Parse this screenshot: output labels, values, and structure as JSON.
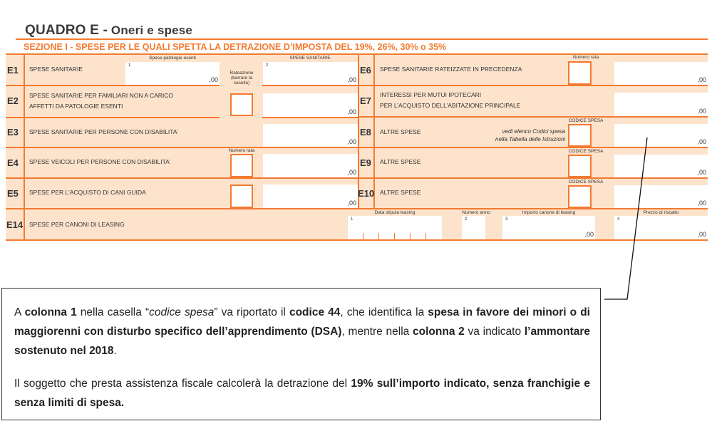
{
  "header": {
    "title_main": "QUADRO E -",
    "title_sub": " Oneri e spese",
    "section": "SEZIONE I  -  SPESE PER LE QUALI SPETTA LA DETRAZIONE D’IMPOSTA DEL 19%, 26%, 30% o 35%"
  },
  "colors": {
    "orange": "#f47a30",
    "peach": "#fde3cc"
  },
  "left_rows": [
    {
      "code": "E1",
      "label": "SPESE SANITARIE"
    },
    {
      "code": "E2",
      "label": "SPESE SANITARIE PER FAMILIARI NON A CARICO",
      "label2": "AFFETTI DA PATOLOGIE ESENTI"
    },
    {
      "code": "E3",
      "label": "SPESE SANITARIE PER PERSONE CON DISABILITA’"
    },
    {
      "code": "E4",
      "label": "SPESE VEICOLI PER PERSONE CON DISABILITA’"
    },
    {
      "code": "E5",
      "label": "SPESE PER L’ACQUISTO DI CANI GUIDA"
    }
  ],
  "right_rows": [
    {
      "code": "E6",
      "label": "SPESE SANITARIE RATEIZZATE IN PRECEDENZA",
      "box_label": "Numero rata"
    },
    {
      "code": "E7",
      "label": "INTERESSI PER MUTUI IPOTECARI",
      "label2": "PER L’ACQUISTO DELL’ABITAZIONE PRINCIPALE"
    },
    {
      "code": "E8",
      "label": "ALTRE SPESE",
      "box_label": "CODICE SPESA",
      "hint1": "vedi elenco Codici spesa",
      "hint2": "nella Tabella delle Istruzioni"
    },
    {
      "code": "E9",
      "label": "ALTRE SPESE",
      "box_label": "CODICE SPESA"
    },
    {
      "code": "E10",
      "label": "ALTRE SPESE",
      "box_label": "CODICE SPESA"
    }
  ],
  "e1": {
    "col1_header": "Spese patologie esenti",
    "col2_header": "SPESE SANITARIE",
    "col1_num": "1",
    "col2_num": "2",
    "rateazione": "Rateazione (barrare la casella)"
  },
  "e4": {
    "box_label": "Numero rata"
  },
  "e14": {
    "code": "E14",
    "label": "SPESE PER CANONI DI LEASING",
    "h1": "Data stipula leasing",
    "h2": "Numero anno",
    "h3": "Importo canone di leasing",
    "h4": "Prezzo di riscatto",
    "n1": "1",
    "n2": "2",
    "n3": "3",
    "n4": "4"
  },
  "decimal": ",00",
  "note": {
    "p1": [
      {
        "t": "A ",
        "s": ""
      },
      {
        "t": "colonna 1",
        "s": "b"
      },
      {
        "t": " nella casella “",
        "s": ""
      },
      {
        "t": "codice spesa",
        "s": "i"
      },
      {
        "t": "” va riportato il ",
        "s": ""
      },
      {
        "t": "codice 44",
        "s": "b"
      },
      {
        "t": ", che identifica la ",
        "s": ""
      },
      {
        "t": "spesa in favore dei minori o di maggiorenni con disturbo specifico dell’apprendimento (DSA)",
        "s": "b"
      },
      {
        "t": ", mentre nella ",
        "s": ""
      },
      {
        "t": "colonna 2",
        "s": "b"
      },
      {
        "t": " va indicato ",
        "s": ""
      },
      {
        "t": "l’ammontare sostenuto nel 2018",
        "s": "b"
      },
      {
        "t": ".",
        "s": ""
      }
    ],
    "p2": [
      {
        "t": "Il soggetto che presta assistenza fiscale calcolerà la detrazione del ",
        "s": ""
      },
      {
        "t": "19% sull’importo indicato, senza franchigie e senza limiti di spesa.",
        "s": "b"
      }
    ]
  }
}
